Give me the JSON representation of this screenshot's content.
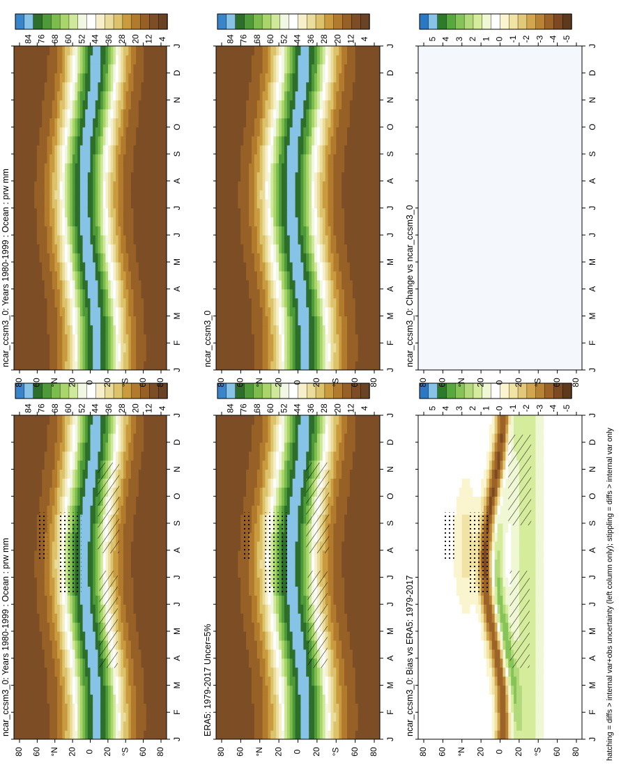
{
  "footer_note": "hatching = diffs > internal var+obs uncertainty (left column only); stippling = diffs > internal var only",
  "chart_data": [
    {
      "type": "heatmap",
      "title": "ncar_ccsm3_0: Years 1980-1999 : Ocean : prw mm",
      "months": [
        "J",
        "F",
        "M",
        "A",
        "M",
        "J",
        "J",
        "A",
        "S",
        "O",
        "N",
        "D",
        "J"
      ],
      "lat_ticks": [
        "80",
        "60",
        "°N",
        "20",
        "0",
        "20",
        "°S",
        "60",
        "80"
      ],
      "colorbar": [
        "84",
        "76",
        "68",
        "60",
        "52",
        "44",
        "36",
        "28",
        "20",
        "12",
        "4"
      ],
      "hatching": true,
      "stippling": true
    },
    {
      "type": "heatmap",
      "title": "ncar_ccsm3_0: Years 1980-1999 : Ocean : prw mm",
      "months": [
        "J",
        "F",
        "M",
        "A",
        "M",
        "J",
        "J",
        "A",
        "S",
        "O",
        "N",
        "D",
        "J"
      ],
      "lat_ticks": [
        "80",
        "60",
        "°N",
        "20",
        "0",
        "20",
        "°S",
        "60",
        "80"
      ],
      "colorbar": [
        "84",
        "76",
        "68",
        "60",
        "52",
        "44",
        "36",
        "28",
        "20",
        "12",
        "4"
      ],
      "hatching": false,
      "stippling": false
    },
    {
      "type": "heatmap",
      "title": "ERA5: 1979-2017 Uncer=5%",
      "months": [
        "J",
        "F",
        "M",
        "A",
        "M",
        "J",
        "J",
        "A",
        "S",
        "O",
        "N",
        "D",
        "J"
      ],
      "lat_ticks": [
        "80",
        "60",
        "°N",
        "20",
        "0",
        "20",
        "°S",
        "60",
        "80"
      ],
      "colorbar": [
        "84",
        "76",
        "68",
        "60",
        "52",
        "44",
        "36",
        "28",
        "20",
        "12",
        "4"
      ],
      "hatching": true,
      "stippling": true
    },
    {
      "type": "heatmap",
      "title": "ncar_ccsm3_0",
      "months": [
        "J",
        "F",
        "M",
        "A",
        "M",
        "J",
        "J",
        "A",
        "S",
        "O",
        "N",
        "D",
        "J"
      ],
      "lat_ticks": [
        "80",
        "60",
        "°N",
        "20",
        "0",
        "20",
        "°S",
        "60",
        "80"
      ],
      "colorbar": [
        "84",
        "76",
        "68",
        "60",
        "52",
        "44",
        "36",
        "28",
        "20",
        "12",
        "4"
      ],
      "hatching": false,
      "stippling": false
    },
    {
      "type": "heatmap",
      "title": "ncar_ccsm3_0: Bias vs ERA5: 1979-2017",
      "months": [
        "J",
        "F",
        "M",
        "A",
        "M",
        "J",
        "J",
        "A",
        "S",
        "O",
        "N",
        "D",
        "J"
      ],
      "lat_ticks": [
        "80",
        "60",
        "°N",
        "20",
        "0",
        "20",
        "°S",
        "60",
        "80"
      ],
      "colorbar": [
        "5",
        "4",
        "3",
        "2",
        "1",
        "0",
        "-1",
        "-2",
        "-3",
        "-4",
        "-5"
      ],
      "hatching": true,
      "stippling": true
    },
    {
      "type": "heatmap",
      "title": "ncar_ccsm3_0: Change vs ncar_ccsm3_0",
      "months": [
        "J",
        "F",
        "M",
        "A",
        "M",
        "J",
        "J",
        "A",
        "S",
        "O",
        "N",
        "D",
        "J"
      ],
      "lat_ticks": [
        "80",
        "60",
        "°N",
        "20",
        "0",
        "20",
        "°S",
        "60",
        "80"
      ],
      "colorbar": [
        "5",
        "4",
        "3",
        "2",
        "1",
        "0",
        "-1",
        "-2",
        "-3",
        "-4",
        "-5"
      ],
      "hatching": false,
      "stippling": false
    }
  ]
}
